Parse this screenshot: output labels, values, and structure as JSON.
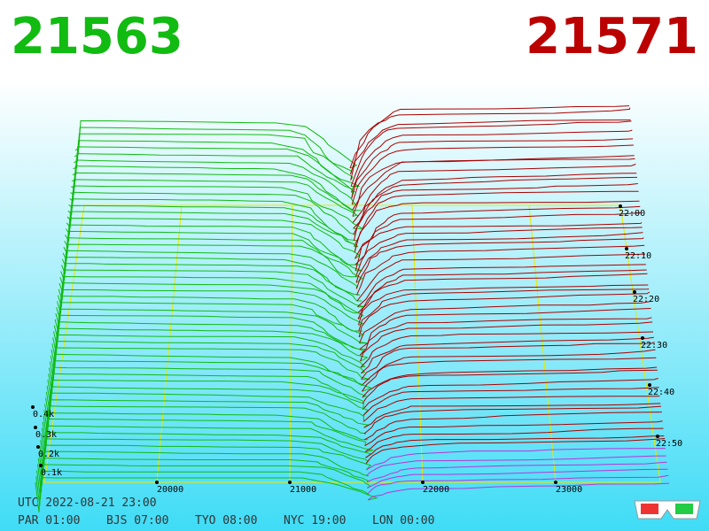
{
  "header": {
    "bid": "21563",
    "ask": "21571"
  },
  "price_axis": {
    "ticks": [
      "20000",
      "21000",
      "22000",
      "23000"
    ]
  },
  "volume_axis": {
    "ticks": [
      "0.4k",
      "0.3k",
      "0.2k",
      "0.1k"
    ]
  },
  "time_axis": {
    "ticks": [
      "22:00",
      "22:10",
      "22:20",
      "22:30",
      "22:40",
      "22:50"
    ]
  },
  "footer": {
    "utc": "UTC 2022-08-21 23:00",
    "clocks": [
      "PAR 01:00",
      "BJS 07:00",
      "TYO 08:00",
      "NYC 19:00",
      "LON 00:00"
    ]
  }
}
